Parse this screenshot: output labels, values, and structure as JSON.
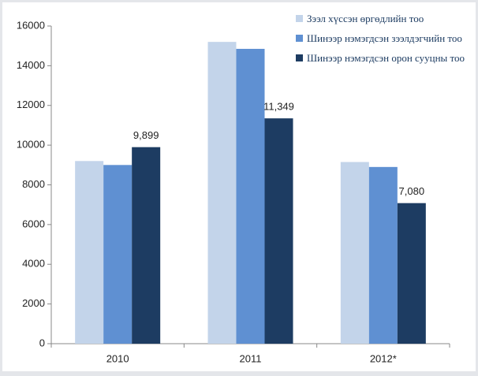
{
  "chart_data": {
    "type": "bar",
    "categories": [
      "2010",
      "2011",
      "2012*"
    ],
    "series": [
      {
        "name": "Зээл хүссэн өргөдлийн тоо",
        "color": "#c3d4ea",
        "values": [
          9200,
          15200,
          9150
        ]
      },
      {
        "name": "Шинээр нэмэгдсэн зээлдэгчийн тоо",
        "color": "#5f90d2",
        "values": [
          9000,
          14850,
          8900
        ]
      },
      {
        "name": "Шинээр нэмэгдсэн орон сууцны тоо",
        "color": "#1d3c62",
        "values": [
          9899,
          11349,
          7080
        ],
        "value_labels": [
          "9,899",
          "11,349",
          "7,080"
        ]
      }
    ],
    "ylim": [
      0,
      16000
    ],
    "yticks": [
      0,
      2000,
      4000,
      6000,
      8000,
      10000,
      12000,
      14000,
      16000
    ],
    "grid": false,
    "legend": "top-right"
  }
}
